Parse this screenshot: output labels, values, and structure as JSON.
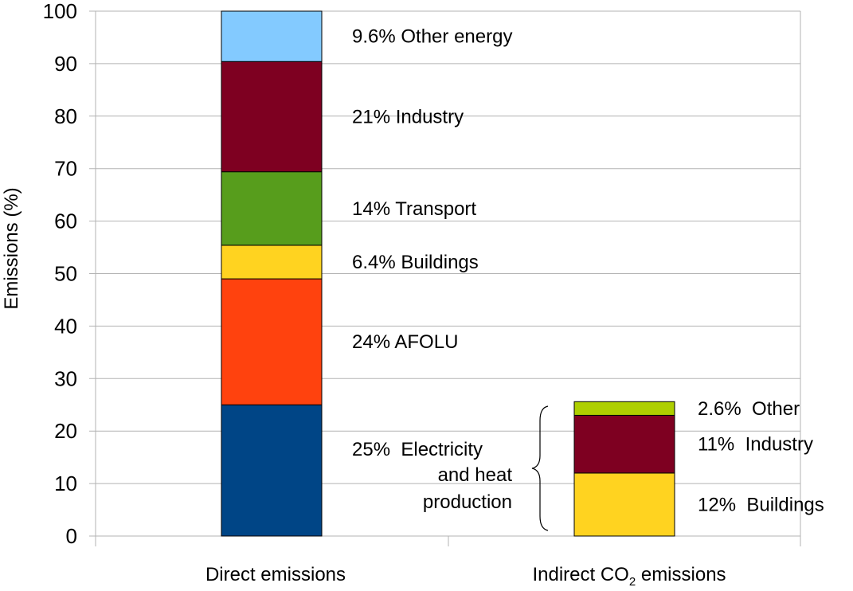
{
  "chart_data": {
    "type": "bar",
    "stacked": true,
    "ylabel": "Emissions (%)",
    "ylim": [
      0,
      100
    ],
    "yticks": [
      0,
      10,
      20,
      30,
      40,
      50,
      60,
      70,
      80,
      90,
      100
    ],
    "grid": true,
    "categories": [
      {
        "label": "Direct emissions"
      },
      {
        "label_main": "Indirect CO",
        "label_sub": "2",
        "label_end": " emissions"
      }
    ],
    "bars": [
      {
        "segments": [
          {
            "value": 25,
            "color": "#004586",
            "label": "25%  Electricity"
          },
          {
            "value": 24,
            "color": "#ff420e",
            "label": "24% AFOLU"
          },
          {
            "value": 6.4,
            "color": "#ffd320",
            "label": "6.4% Buildings"
          },
          {
            "value": 14,
            "color": "#579d1c",
            "label": "14% Transport"
          },
          {
            "value": 21,
            "color": "#7e0021",
            "label": "21% Industry"
          },
          {
            "value": 9.6,
            "color": "#83caff",
            "label": "9.6% Other energy"
          }
        ]
      },
      {
        "segments": [
          {
            "value": 12,
            "color": "#ffd320",
            "label": "12%  Buildings"
          },
          {
            "value": 11,
            "color": "#7e0021",
            "label": "11%  Industry"
          },
          {
            "value": 2.6,
            "color": "#aecf00",
            "label": "2.6%  Other"
          }
        ]
      }
    ],
    "annotation": [
      "and heat",
      "production"
    ]
  }
}
